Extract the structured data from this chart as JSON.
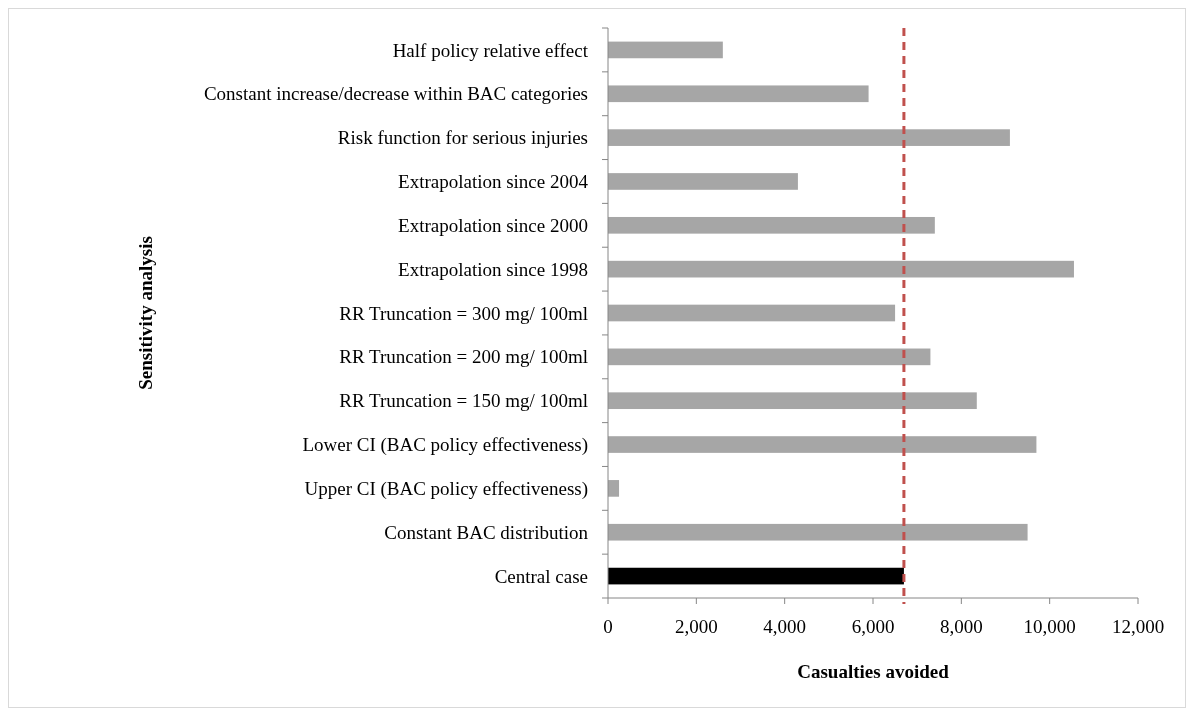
{
  "chart_data": {
    "type": "bar",
    "orientation": "horizontal",
    "xlabel": "Casualties avoided",
    "ylabel": "Sensitivity analysis",
    "categories": [
      "Half policy relative effect",
      "Constant increase/decrease within BAC categories",
      "Risk function for serious injuries",
      "Extrapolation since 2004",
      "Extrapolation since 2000",
      "Extrapolation since 1998",
      "RR Truncation = 300 mg/ 100ml",
      "RR Truncation = 200 mg/ 100ml",
      "RR Truncation = 150 mg/ 100ml",
      "Lower CI (BAC policy effectiveness)",
      "Upper CI (BAC policy effectiveness)",
      "Constant BAC distribution",
      "Central case"
    ],
    "values": [
      2600,
      5900,
      9100,
      4300,
      7400,
      10550,
      6500,
      7300,
      8350,
      9700,
      250,
      9500,
      6700
    ],
    "colors": [
      "#a6a6a6",
      "#a6a6a6",
      "#a6a6a6",
      "#a6a6a6",
      "#a6a6a6",
      "#a6a6a6",
      "#a6a6a6",
      "#a6a6a6",
      "#a6a6a6",
      "#a6a6a6",
      "#a6a6a6",
      "#a6a6a6",
      "#000000"
    ],
    "xlim": [
      0,
      12000
    ],
    "xticks": [
      {
        "value": 0,
        "label": "0"
      },
      {
        "value": 2000,
        "label": "2,000"
      },
      {
        "value": 4000,
        "label": "4,000"
      },
      {
        "value": 6000,
        "label": "6,000"
      },
      {
        "value": 8000,
        "label": "8,000"
      },
      {
        "value": 10000,
        "label": "10,000"
      },
      {
        "value": 12000,
        "label": "12,000"
      }
    ],
    "ref_lines": [
      {
        "axis": "x",
        "value": 6700,
        "color": "#c0504d",
        "line_style": "dashed"
      }
    ],
    "grid": false
  }
}
